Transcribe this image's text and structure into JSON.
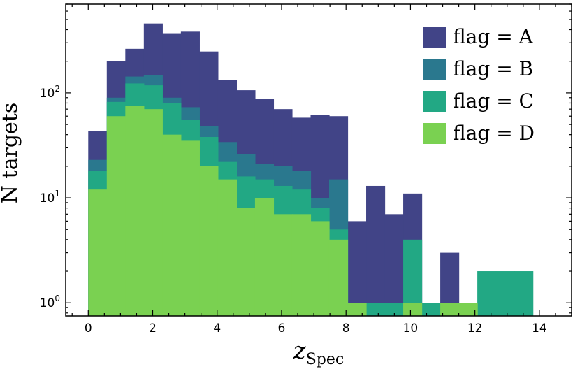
{
  "chart_data": {
    "type": "histogram",
    "stacked": true,
    "yscale": "log",
    "xlabel_main": "z",
    "xlabel_sub": "Spec",
    "ylabel": "N targets",
    "xlim": [
      -0.7,
      15.0
    ],
    "ylim": [
      0.75,
      700
    ],
    "bin_edges": [
      0,
      0.575,
      1.15,
      1.725,
      2.3,
      2.875,
      3.45,
      4.025,
      4.6,
      5.175,
      5.75,
      6.325,
      6.9,
      7.475,
      8.05,
      8.625,
      9.2,
      9.775,
      10.35,
      10.925,
      11.5,
      12.075,
      12.65,
      13.225,
      13.8
    ],
    "legend_position": "top-right",
    "xticks": [
      0,
      2,
      4,
      6,
      8,
      10,
      12,
      14
    ],
    "yticks": [
      {
        "value": 1,
        "base": "10",
        "exp": "0"
      },
      {
        "value": 10,
        "base": "10",
        "exp": "1"
      },
      {
        "value": 100,
        "base": "10",
        "exp": "2"
      }
    ],
    "series": [
      {
        "name": "flag = D",
        "color": "#7ad151",
        "values": [
          12,
          60,
          75,
          70,
          40,
          35,
          20,
          15,
          8,
          10,
          7,
          7,
          6,
          4,
          1,
          0,
          0,
          1,
          0,
          1,
          1,
          0,
          0,
          0
        ]
      },
      {
        "name": "flag = C",
        "color": "#22a884",
        "values": [
          6,
          22,
          48,
          48,
          40,
          20,
          18,
          7,
          8,
          5,
          6,
          5,
          2,
          1,
          0,
          1,
          1,
          3,
          1,
          0,
          0,
          2,
          2,
          2
        ]
      },
      {
        "name": "flag = B",
        "color": "#2a788e",
        "values": [
          5,
          8,
          20,
          30,
          10,
          18,
          10,
          12,
          10,
          6,
          7,
          6,
          2,
          10,
          0,
          0,
          0,
          0,
          0,
          0,
          0,
          0,
          0,
          0
        ]
      },
      {
        "name": "flag = A",
        "color": "#414487",
        "values": [
          20,
          110,
          120,
          310,
          280,
          310,
          200,
          98,
          80,
          67,
          50,
          40,
          52,
          45,
          5,
          12,
          6,
          7,
          0,
          2,
          0,
          0,
          0,
          0
        ]
      }
    ]
  }
}
